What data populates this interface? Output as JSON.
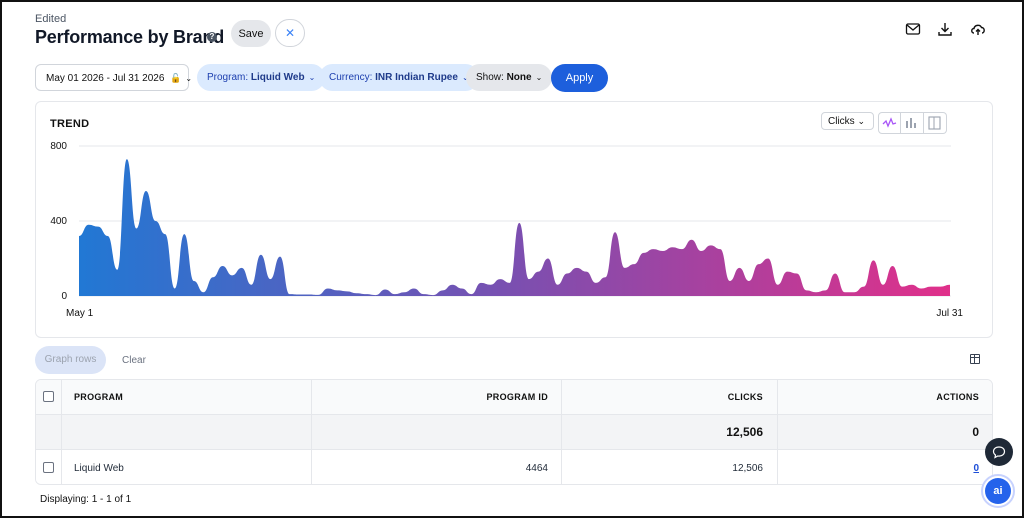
{
  "header": {
    "edited_label": "Edited",
    "title": "Performance by Brand",
    "help_glyph": "?",
    "save_label": "Save",
    "close_glyph": "✕",
    "icons": [
      "mail-icon",
      "download-icon",
      "cloud-upload-icon"
    ]
  },
  "filters": {
    "date_range": "May 01 2026 - Jul 31 2026",
    "program_label": "Program:",
    "program_value": "Liquid Web",
    "currency_label": "Currency:",
    "currency_value": "INR Indian Rupee",
    "show_label": "Show:",
    "show_value": "None",
    "apply_label": "Apply"
  },
  "trend": {
    "title": "TREND",
    "metric": "Clicks",
    "toggles": [
      "line-chart-icon",
      "bar-chart-icon",
      "table-view-icon"
    ]
  },
  "chart_data": {
    "type": "area",
    "title": "TREND",
    "xlabel": "",
    "ylabel": "",
    "ylim": [
      0,
      800
    ],
    "yticks": [
      "800",
      "400",
      "0"
    ],
    "x_start_label": "May 1",
    "x_end_label": "Jul 31",
    "grid": true,
    "gradient_colors": [
      "#2178d4",
      "#7b4fb0",
      "#e0308a"
    ],
    "values": [
      320,
      380,
      370,
      320,
      140,
      730,
      360,
      560,
      400,
      330,
      40,
      330,
      80,
      20,
      100,
      160,
      110,
      150,
      60,
      220,
      90,
      210,
      10,
      8,
      8,
      6,
      40,
      30,
      25,
      15,
      10,
      5,
      35,
      10,
      20,
      40,
      10,
      5,
      30,
      60,
      40,
      10,
      70,
      60,
      90,
      70,
      390,
      90,
      130,
      200,
      60,
      120,
      150,
      130,
      70,
      100,
      340,
      150,
      170,
      230,
      250,
      240,
      260,
      250,
      300,
      240,
      270,
      250,
      80,
      150,
      80,
      170,
      200,
      60,
      130,
      120,
      30,
      20,
      30,
      120,
      20,
      20,
      50,
      190,
      60,
      160,
      50,
      60,
      40,
      50,
      50,
      60
    ]
  },
  "table_controls": {
    "graph_rows_label": "Graph rows",
    "clear_label": "Clear"
  },
  "table": {
    "columns": [
      "PROGRAM",
      "PROGRAM ID",
      "CLICKS",
      "ACTIONS"
    ],
    "totals": {
      "clicks": "12,506",
      "actions": "0"
    },
    "rows": [
      {
        "program": "Liquid Web",
        "program_id": "4464",
        "clicks": "12,506",
        "actions": "0"
      }
    ]
  },
  "footer": {
    "displaying": "Displaying: 1 - 1 of 1"
  },
  "fab": {
    "ai_label": "ai"
  }
}
